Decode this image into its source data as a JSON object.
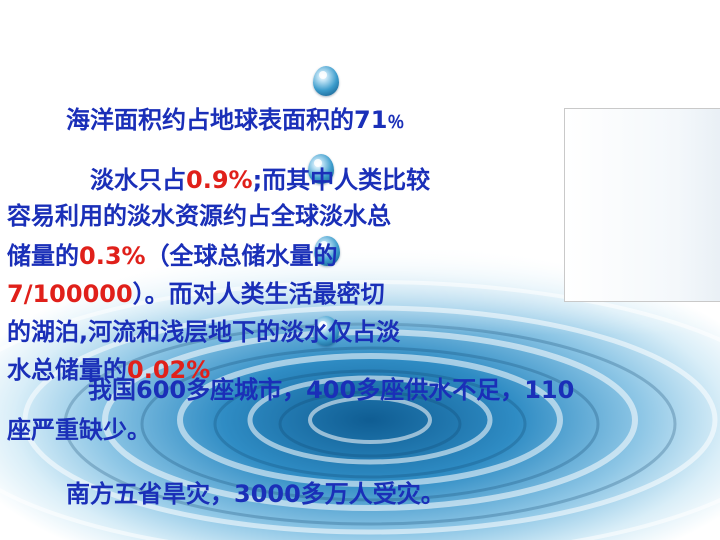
{
  "line1": {
    "text": "海洋面积约占地球表面积的71",
    "pct": "％"
  },
  "para2": {
    "r1_a": "淡水只占",
    "r1_red": "0.9%",
    "r1_b": ";而其中人类比较",
    "r2": "容易利用的淡水资源约占全球淡水总",
    "r3_a": "储量的",
    "r3_red": "0.3%",
    "r3_b": "（全球总储水量的",
    "r4_red": "7/100000",
    "r4_b": "）。而对人类生活最密切",
    "r5": "的湖泊,河流和浅层地下的淡水仅占淡",
    "r6_a": "水总储量的",
    "r6_red": "0.02%"
  },
  "para3": {
    "r1": "我国600多座城市，400多座供水不足，110",
    "r2": "座严重缺少。"
  },
  "para4": "南方五省旱灾，3000多万人受灾。",
  "colors": {
    "text_blue": "#1a2fb8",
    "highlight_red": "#e0201a",
    "water_blue": "#3c9ccc"
  },
  "icons": [
    "water-drop-icon",
    "water-ripple-background"
  ]
}
